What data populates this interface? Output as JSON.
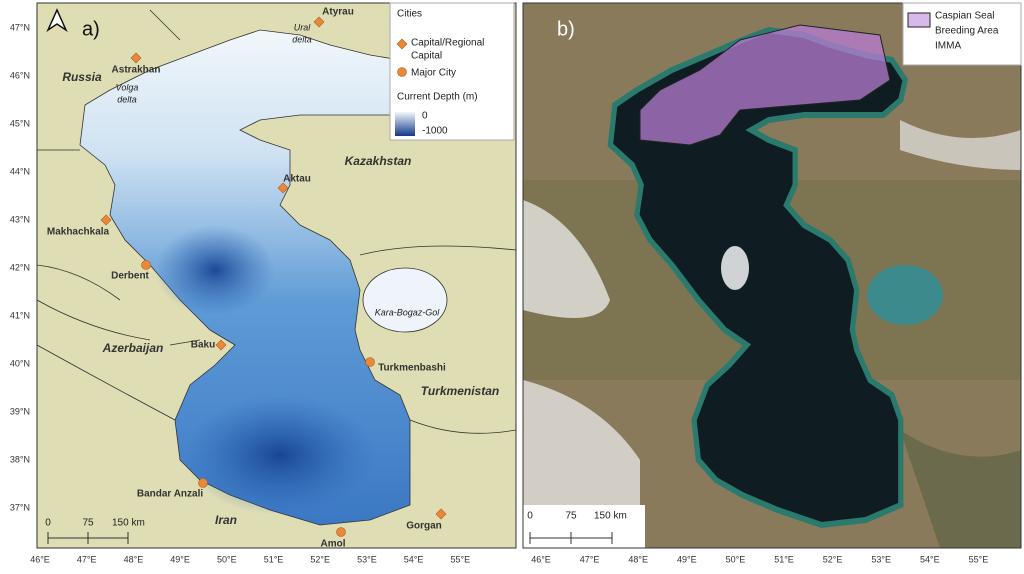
{
  "panel_a": {
    "label": "a)",
    "lat_labels": [
      "47°N",
      "46°N",
      "45°N",
      "44°N",
      "43°N",
      "42°N",
      "41°N",
      "40°N",
      "39°N",
      "38°N",
      "37°N"
    ],
    "lon_labels": [
      "46°E",
      "47°E",
      "48°E",
      "49°E",
      "50°E",
      "51°E",
      "52°E",
      "53°E",
      "54°E",
      "55°E"
    ],
    "legend": {
      "title": "Cities",
      "capital": [
        "Capital/Regional",
        "Capital"
      ],
      "major_city": "Major City",
      "depth_title": "Current Depth (m)",
      "depth_min": 0,
      "depth_max": -1000
    },
    "capitals": [
      "Atyrau",
      "Astrakhan",
      "Aktau",
      "Makhachkala",
      "Baku",
      "Gorgan"
    ],
    "major_cities": [
      "Derbent",
      "Turkmenbashi",
      "Bandar Anzali",
      "Amol"
    ],
    "countries": [
      "Russia",
      "Kazakhstan",
      "Azerbaijan",
      "Turkmenistan",
      "Iran"
    ],
    "features": [
      [
        "Volga",
        "delta"
      ],
      [
        "Ural",
        "delta"
      ],
      [
        "Kara-Bogaz-Gol"
      ]
    ],
    "scale_bar": [
      "0",
      "75",
      "150 km"
    ]
  },
  "panel_b": {
    "label": "b)",
    "lon_labels": [
      "46°E",
      "47°E",
      "48°E",
      "49°E",
      "50°E",
      "51°E",
      "52°E",
      "53°E",
      "54°E",
      "55°E"
    ],
    "legend": [
      "Caspian Seal",
      "Breeding Area",
      "IMMA"
    ],
    "scale_bar": [
      "0",
      "75",
      "150 km"
    ]
  }
}
